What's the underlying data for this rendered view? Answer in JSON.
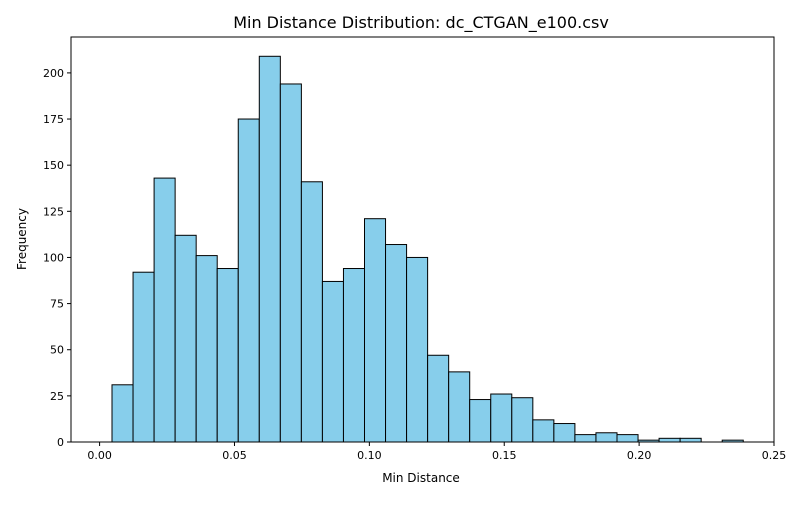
{
  "chart_data": {
    "type": "bar",
    "title": "Min Distance Distribution: dc_CTGAN_e100.csv",
    "xlabel": "Min Distance",
    "ylabel": "Frequency",
    "xlim": [
      -0.0106,
      0.25
    ],
    "ylim": [
      0,
      219.45
    ],
    "xticks": [
      0.0,
      0.05,
      0.1,
      0.15,
      0.2,
      0.25
    ],
    "xtick_labels": [
      "0.00",
      "0.05",
      "0.10",
      "0.15",
      "0.20",
      "0.25"
    ],
    "yticks": [
      0,
      25,
      50,
      75,
      100,
      125,
      150,
      175,
      200
    ],
    "ytick_labels": [
      "0",
      "25",
      "50",
      "75",
      "100",
      "125",
      "150",
      "175",
      "200"
    ],
    "grid": false,
    "bar_color": "#87ceeb",
    "edge_color": "#000000",
    "bin_start": 0.0046,
    "bin_width": 0.0078,
    "values": [
      31,
      92,
      143,
      112,
      101,
      94,
      175,
      209,
      194,
      141,
      87,
      94,
      121,
      107,
      100,
      47,
      38,
      23,
      26,
      24,
      12,
      10,
      4,
      5,
      4,
      1,
      2,
      2,
      0,
      1
    ]
  }
}
